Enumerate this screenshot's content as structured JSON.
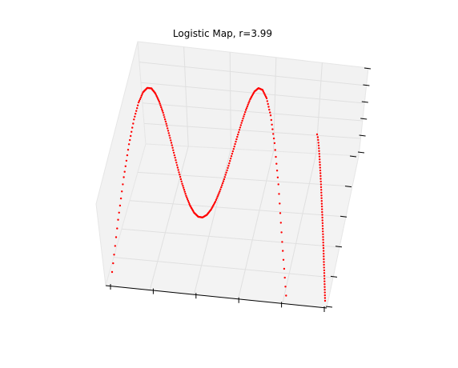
{
  "chart_data": {
    "type": "scatter",
    "projection": "3d",
    "title": "Logistic Map, r=3.99",
    "r": 3.99,
    "xlabel": "",
    "ylabel": "",
    "zlabel": "",
    "xlim": [
      0,
      1
    ],
    "ylim": [
      0,
      1
    ],
    "zlim": [
      0,
      1
    ],
    "grid": true,
    "marker_color": "#ff0000",
    "pane_color": "#f2f2f2",
    "series": [
      {
        "type": "scatter",
        "x_label_note": "",
        "x": [
          0.0,
          0.02,
          0.04,
          0.06,
          0.08,
          0.1,
          0.12,
          0.14,
          0.16,
          0.18,
          0.2,
          0.22,
          0.24,
          0.26,
          0.28,
          0.3,
          0.32,
          0.34,
          0.36,
          0.38,
          0.4,
          0.42,
          0.44,
          0.46,
          0.48,
          0.5,
          0.52,
          0.54,
          0.56,
          0.58,
          0.6,
          0.62,
          0.64,
          0.66,
          0.68,
          0.7,
          0.72,
          0.74,
          0.76,
          0.78,
          0.8,
          0.82,
          0.84,
          0.86,
          0.88,
          0.9,
          0.92,
          0.94,
          0.96,
          0.98,
          1.0
        ],
        "y": [
          0.0,
          0.078,
          0.153,
          0.225,
          0.294,
          0.359,
          0.421,
          0.481,
          0.536,
          0.589,
          0.638,
          0.685,
          0.728,
          0.768,
          0.804,
          0.838,
          0.868,
          0.895,
          0.919,
          0.94,
          0.958,
          0.972,
          0.983,
          0.991,
          0.996,
          0.998,
          0.996,
          0.991,
          0.983,
          0.972,
          0.958,
          0.94,
          0.919,
          0.895,
          0.868,
          0.838,
          0.804,
          0.768,
          0.728,
          0.685,
          0.638,
          0.589,
          0.536,
          0.481,
          0.421,
          0.359,
          0.294,
          0.225,
          0.153,
          0.078,
          0.0
        ],
        "z": [
          0.0,
          0.286,
          0.517,
          0.695,
          0.828,
          0.918,
          0.972,
          0.995,
          0.992,
          0.966,
          0.922,
          0.865,
          0.797,
          0.723,
          0.647,
          0.572,
          0.503,
          0.443,
          0.394,
          0.36,
          0.342,
          0.341,
          0.356,
          0.386,
          0.429,
          0.484,
          0.548,
          0.619,
          0.695,
          0.771,
          0.845,
          0.913,
          0.97,
          1.012,
          1.033,
          1.027,
          0.988,
          0.905,
          0.767,
          0.561,
          0.271,
          0.0,
          0.0,
          0.0,
          0.0,
          0.0,
          0.0,
          0.0,
          0.0,
          0.0,
          0.0
        ]
      }
    ]
  }
}
